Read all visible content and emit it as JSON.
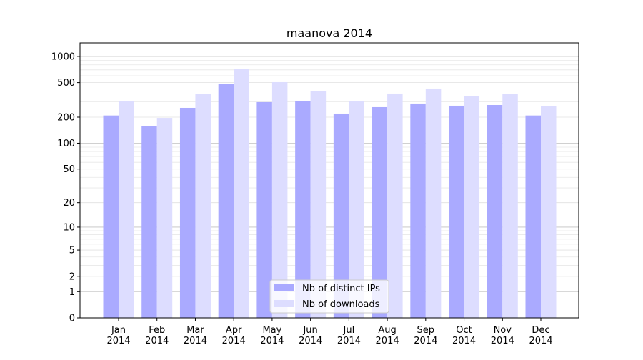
{
  "chart_data": {
    "type": "bar",
    "title": "maanova 2014",
    "xlabel": "",
    "ylabel": "",
    "yscale": "log(1+y)",
    "ylim": [
      0,
      1430
    ],
    "yticks": [
      0,
      1,
      2,
      5,
      10,
      20,
      50,
      100,
      200,
      500,
      1000
    ],
    "grid": true,
    "legend_position": "bottom-center",
    "categories": [
      "Jan\n2014",
      "Feb\n2014",
      "Mar\n2014",
      "Apr\n2014",
      "May\n2014",
      "Jun\n2014",
      "Jul\n2014",
      "Aug\n2014",
      "Sep\n2014",
      "Oct\n2014",
      "Nov\n2014",
      "Dec\n2014"
    ],
    "series": [
      {
        "name": "Nb of distinct IPs",
        "color": "#aaaaff",
        "values": [
          209,
          159,
          256,
          487,
          298,
          309,
          220,
          261,
          287,
          271,
          276,
          209
        ]
      },
      {
        "name": "Nb of downloads",
        "color": "#ddddff",
        "values": [
          304,
          196,
          367,
          711,
          506,
          403,
          309,
          374,
          427,
          347,
          367,
          266
        ]
      }
    ]
  }
}
